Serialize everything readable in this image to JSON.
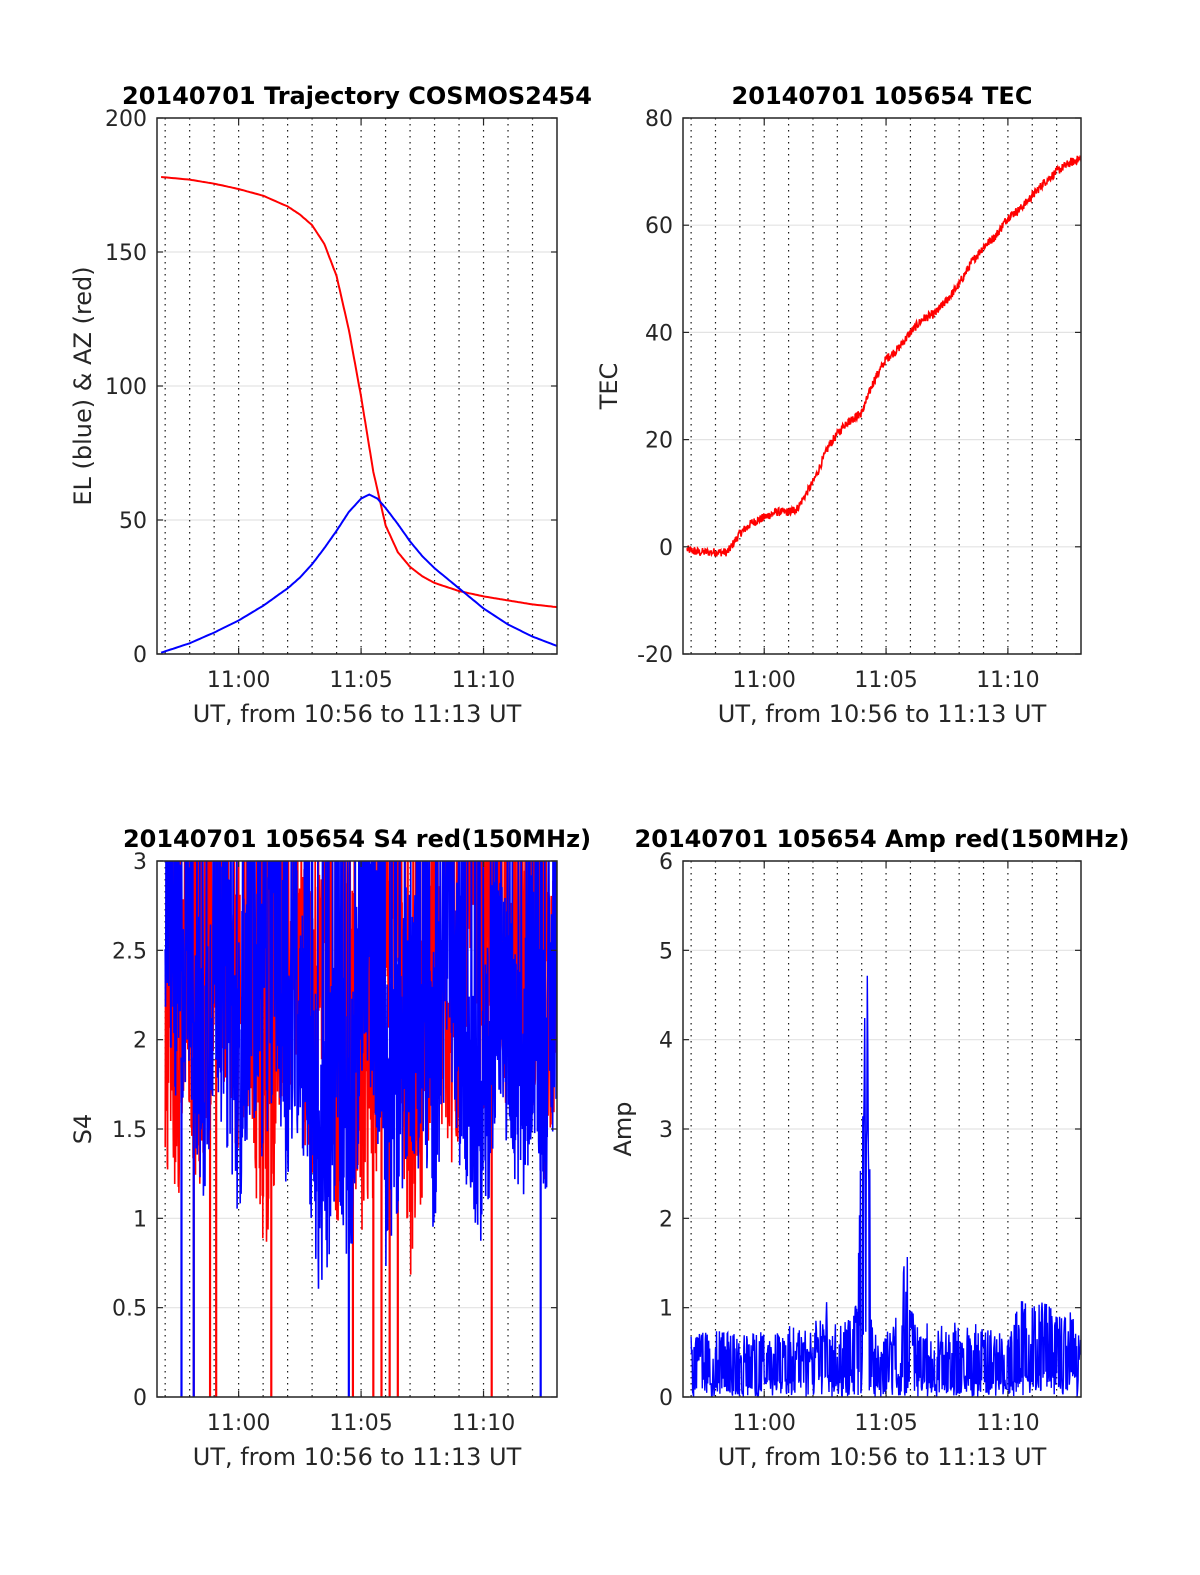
{
  "chart_data": [
    {
      "type": "line",
      "title": "20140701 Trajectory COSMOS2454",
      "xlabel": "UT, from 10:56 to 11:13 UT",
      "ylabel": "EL (blue) & AZ (red)",
      "xlim": [
        "10:56:40",
        "11:13:00"
      ],
      "ylim": [
        0,
        200
      ],
      "xticks": [
        "11:00",
        "11:05",
        "11:10"
      ],
      "yticks": [
        0,
        50,
        100,
        150,
        200
      ],
      "minor_x_gridlines_every_minutes": 1,
      "grid": true,
      "series": [
        {
          "color": "#ff0000",
          "x": [
            "10:56:50",
            "10:58:00",
            "10:59:00",
            "11:00:00",
            "11:01:00",
            "11:02:00",
            "11:02:30",
            "11:03:00",
            "11:03:30",
            "11:04:00",
            "11:04:30",
            "11:05:00",
            "11:05:30",
            "11:06:00",
            "11:06:30",
            "11:07:00",
            "11:07:30",
            "11:08:00",
            "11:09:00",
            "11:10:00",
            "11:11:00",
            "11:12:00",
            "11:13:00"
          ],
          "values": [
            178,
            177,
            175.5,
            173.5,
            171,
            167,
            164,
            160,
            153,
            141,
            121,
            96,
            68,
            48,
            38,
            32.5,
            29,
            26.5,
            23.5,
            21.5,
            20,
            18.5,
            17.5
          ]
        },
        {
          "color": "#0000ff",
          "x": [
            "10:56:50",
            "10:58:00",
            "10:59:00",
            "11:00:00",
            "11:01:00",
            "11:02:00",
            "11:02:30",
            "11:03:00",
            "11:03:30",
            "11:04:00",
            "11:04:30",
            "11:05:00",
            "11:05:20",
            "11:05:40",
            "11:06:00",
            "11:06:30",
            "11:07:00",
            "11:07:30",
            "11:08:00",
            "11:09:00",
            "11:10:00",
            "11:11:00",
            "11:12:00",
            "11:13:00"
          ],
          "values": [
            0.5,
            4,
            8,
            12.5,
            18,
            24.5,
            28.5,
            33.5,
            39.5,
            46,
            53,
            58,
            59.5,
            58,
            54.5,
            48.5,
            42,
            36.5,
            32,
            24.5,
            17,
            11,
            6.5,
            3
          ]
        }
      ]
    },
    {
      "type": "line",
      "title": "20140701 105654 TEC",
      "xlabel": "UT, from 10:56 to 11:13 UT",
      "ylabel": "TEC",
      "xlim": [
        "10:56:40",
        "11:13:00"
      ],
      "ylim": [
        -20,
        80
      ],
      "xticks": [
        "11:00",
        "11:05",
        "11:10"
      ],
      "yticks": [
        -20,
        0,
        20,
        40,
        60,
        80
      ],
      "minor_x_gridlines_every_minutes": 1,
      "grid": true,
      "series": [
        {
          "color": "#ff0000",
          "x": [
            "10:56:50",
            "10:57:20",
            "10:58:00",
            "10:58:30",
            "10:59:00",
            "10:59:30",
            "11:00:00",
            "11:00:30",
            "11:01:00",
            "11:01:20",
            "11:02:00",
            "11:02:40",
            "11:03:20",
            "11:03:40",
            "11:04:00",
            "11:04:30",
            "11:05:00",
            "11:05:30",
            "11:06:00",
            "11:06:30",
            "11:07:00",
            "11:07:30",
            "11:08:00",
            "11:08:30",
            "11:09:00",
            "11:09:30",
            "11:10:00",
            "11:10:30",
            "11:11:00",
            "11:11:30",
            "11:12:00",
            "11:12:30",
            "11:13:00"
          ],
          "values": [
            -0.5,
            -1,
            -1,
            -1,
            2.5,
            4.5,
            5.5,
            6.5,
            6.5,
            7,
            12,
            19,
            23,
            24,
            25,
            31,
            35,
            37,
            40,
            42.5,
            43.5,
            46,
            49,
            53,
            56,
            58,
            61.5,
            63,
            65.5,
            68,
            70,
            71.5,
            72.5
          ]
        }
      ]
    },
    {
      "type": "line",
      "title": "20140701 105654 S4 red(150MHz)",
      "xlabel": "UT, from 10:56 to 11:13 UT",
      "ylabel": "S4",
      "xlim": [
        "10:56:40",
        "11:13:00"
      ],
      "ylim": [
        0,
        3
      ],
      "xticks": [
        "11:00",
        "11:05",
        "11:10"
      ],
      "yticks": [
        0,
        0.5,
        1,
        1.5,
        2,
        2.5,
        3
      ],
      "minor_x_gridlines_every_minutes": 1,
      "grid": true,
      "series": [
        {
          "color": "#ff0000",
          "x": [
            "10:57:00",
            "10:57:30",
            "10:58:00",
            "10:58:30",
            "10:59:00",
            "10:59:30",
            "11:00:00",
            "11:00:30",
            "11:01:00",
            "11:01:30",
            "11:02:00",
            "11:02:30",
            "11:03:00",
            "11:03:30",
            "11:04:00",
            "11:04:30",
            "11:05:00",
            "11:05:30",
            "11:06:00",
            "11:06:30",
            "11:07:00",
            "11:07:30",
            "11:08:00",
            "11:08:30",
            "11:09:00",
            "11:09:30",
            "11:10:00",
            "11:10:30",
            "11:11:00",
            "11:11:30",
            "11:12:00",
            "11:12:30",
            "11:13:00"
          ],
          "values": [
            2.1,
            1.9,
            2.2,
            1.8,
            2.6,
            2.4,
            2.0,
            2.2,
            1.4,
            2.0,
            2.6,
            2.3,
            2.0,
            2.5,
            1.7,
            2.4,
            1.6,
            1.8,
            2.8,
            2.6,
            1.4,
            1.9,
            2.5,
            2.0,
            2.2,
            2.9,
            2.4,
            3.0,
            2.2,
            2.6,
            2.3,
            2.0,
            2.4
          ],
          "drops_to_zero_at": [
            "10:58:10",
            "10:58:50",
            "10:59:05",
            "11:01:20",
            "11:04:40",
            "11:05:30",
            "11:05:50",
            "11:06:10",
            "11:06:30",
            "11:10:20"
          ]
        },
        {
          "color": "#0000ff",
          "x": [
            "10:57:00",
            "10:57:30",
            "10:58:00",
            "10:58:30",
            "10:59:00",
            "10:59:30",
            "11:00:00",
            "11:00:30",
            "11:01:00",
            "11:01:30",
            "11:02:00",
            "11:02:30",
            "11:03:00",
            "11:03:30",
            "11:04:00",
            "11:04:30",
            "11:05:00",
            "11:05:30",
            "11:06:00",
            "11:06:30",
            "11:07:00",
            "11:07:30",
            "11:08:00",
            "11:08:30",
            "11:09:00",
            "11:09:30",
            "11:10:00",
            "11:10:30",
            "11:11:00",
            "11:11:30",
            "11:12:00",
            "11:12:30",
            "11:13:00"
          ],
          "values": [
            2.8,
            2.3,
            2.6,
            1.7,
            2.5,
            2.2,
            1.8,
            2.4,
            2.1,
            2.6,
            1.9,
            2.3,
            1.6,
            1.2,
            2.0,
            1.4,
            2.3,
            2.5,
            1.5,
            1.8,
            2.2,
            2.0,
            1.7,
            2.6,
            2.1,
            1.9,
            1.5,
            2.4,
            2.0,
            1.6,
            2.3,
            1.9,
            2.3
          ],
          "drops_to_zero_at": [
            "10:57:40",
            "10:58:10",
            "11:04:30",
            "11:12:20"
          ]
        }
      ]
    },
    {
      "type": "line",
      "title": "20140701 105654 Amp red(150MHz)",
      "xlabel": "UT, from 10:56 to 11:13 UT",
      "ylabel": "Amp",
      "xlim": [
        "10:56:40",
        "11:13:00"
      ],
      "ylim": [
        0,
        6
      ],
      "xticks": [
        "11:00",
        "11:05",
        "11:10"
      ],
      "yticks": [
        0,
        1,
        2,
        3,
        4,
        5,
        6
      ],
      "minor_x_gridlines_every_minutes": 1,
      "grid": true,
      "series": [
        {
          "color": "#0000ff",
          "x": [
            "10:57:00",
            "10:58:00",
            "10:59:00",
            "11:00:00",
            "11:01:00",
            "11:02:00",
            "11:02:30",
            "11:03:00",
            "11:03:30",
            "11:03:50",
            "11:04:05",
            "11:04:15",
            "11:04:25",
            "11:04:40",
            "11:05:00",
            "11:05:30",
            "11:05:50",
            "11:06:10",
            "11:07:00",
            "11:08:00",
            "11:09:00",
            "11:10:00",
            "11:10:30",
            "11:11:00",
            "11:11:30",
            "11:12:00",
            "11:12:30",
            "11:13:00"
          ],
          "values": [
            0.7,
            0.75,
            0.7,
            0.75,
            0.8,
            0.75,
            1.2,
            0.8,
            0.9,
            1.5,
            5.25,
            4.7,
            0.9,
            0.7,
            0.75,
            1.15,
            1.7,
            0.9,
            0.8,
            0.85,
            0.8,
            0.7,
            1.1,
            1.05,
            1.25,
            0.9,
            1.0,
            0.7
          ]
        }
      ]
    }
  ]
}
